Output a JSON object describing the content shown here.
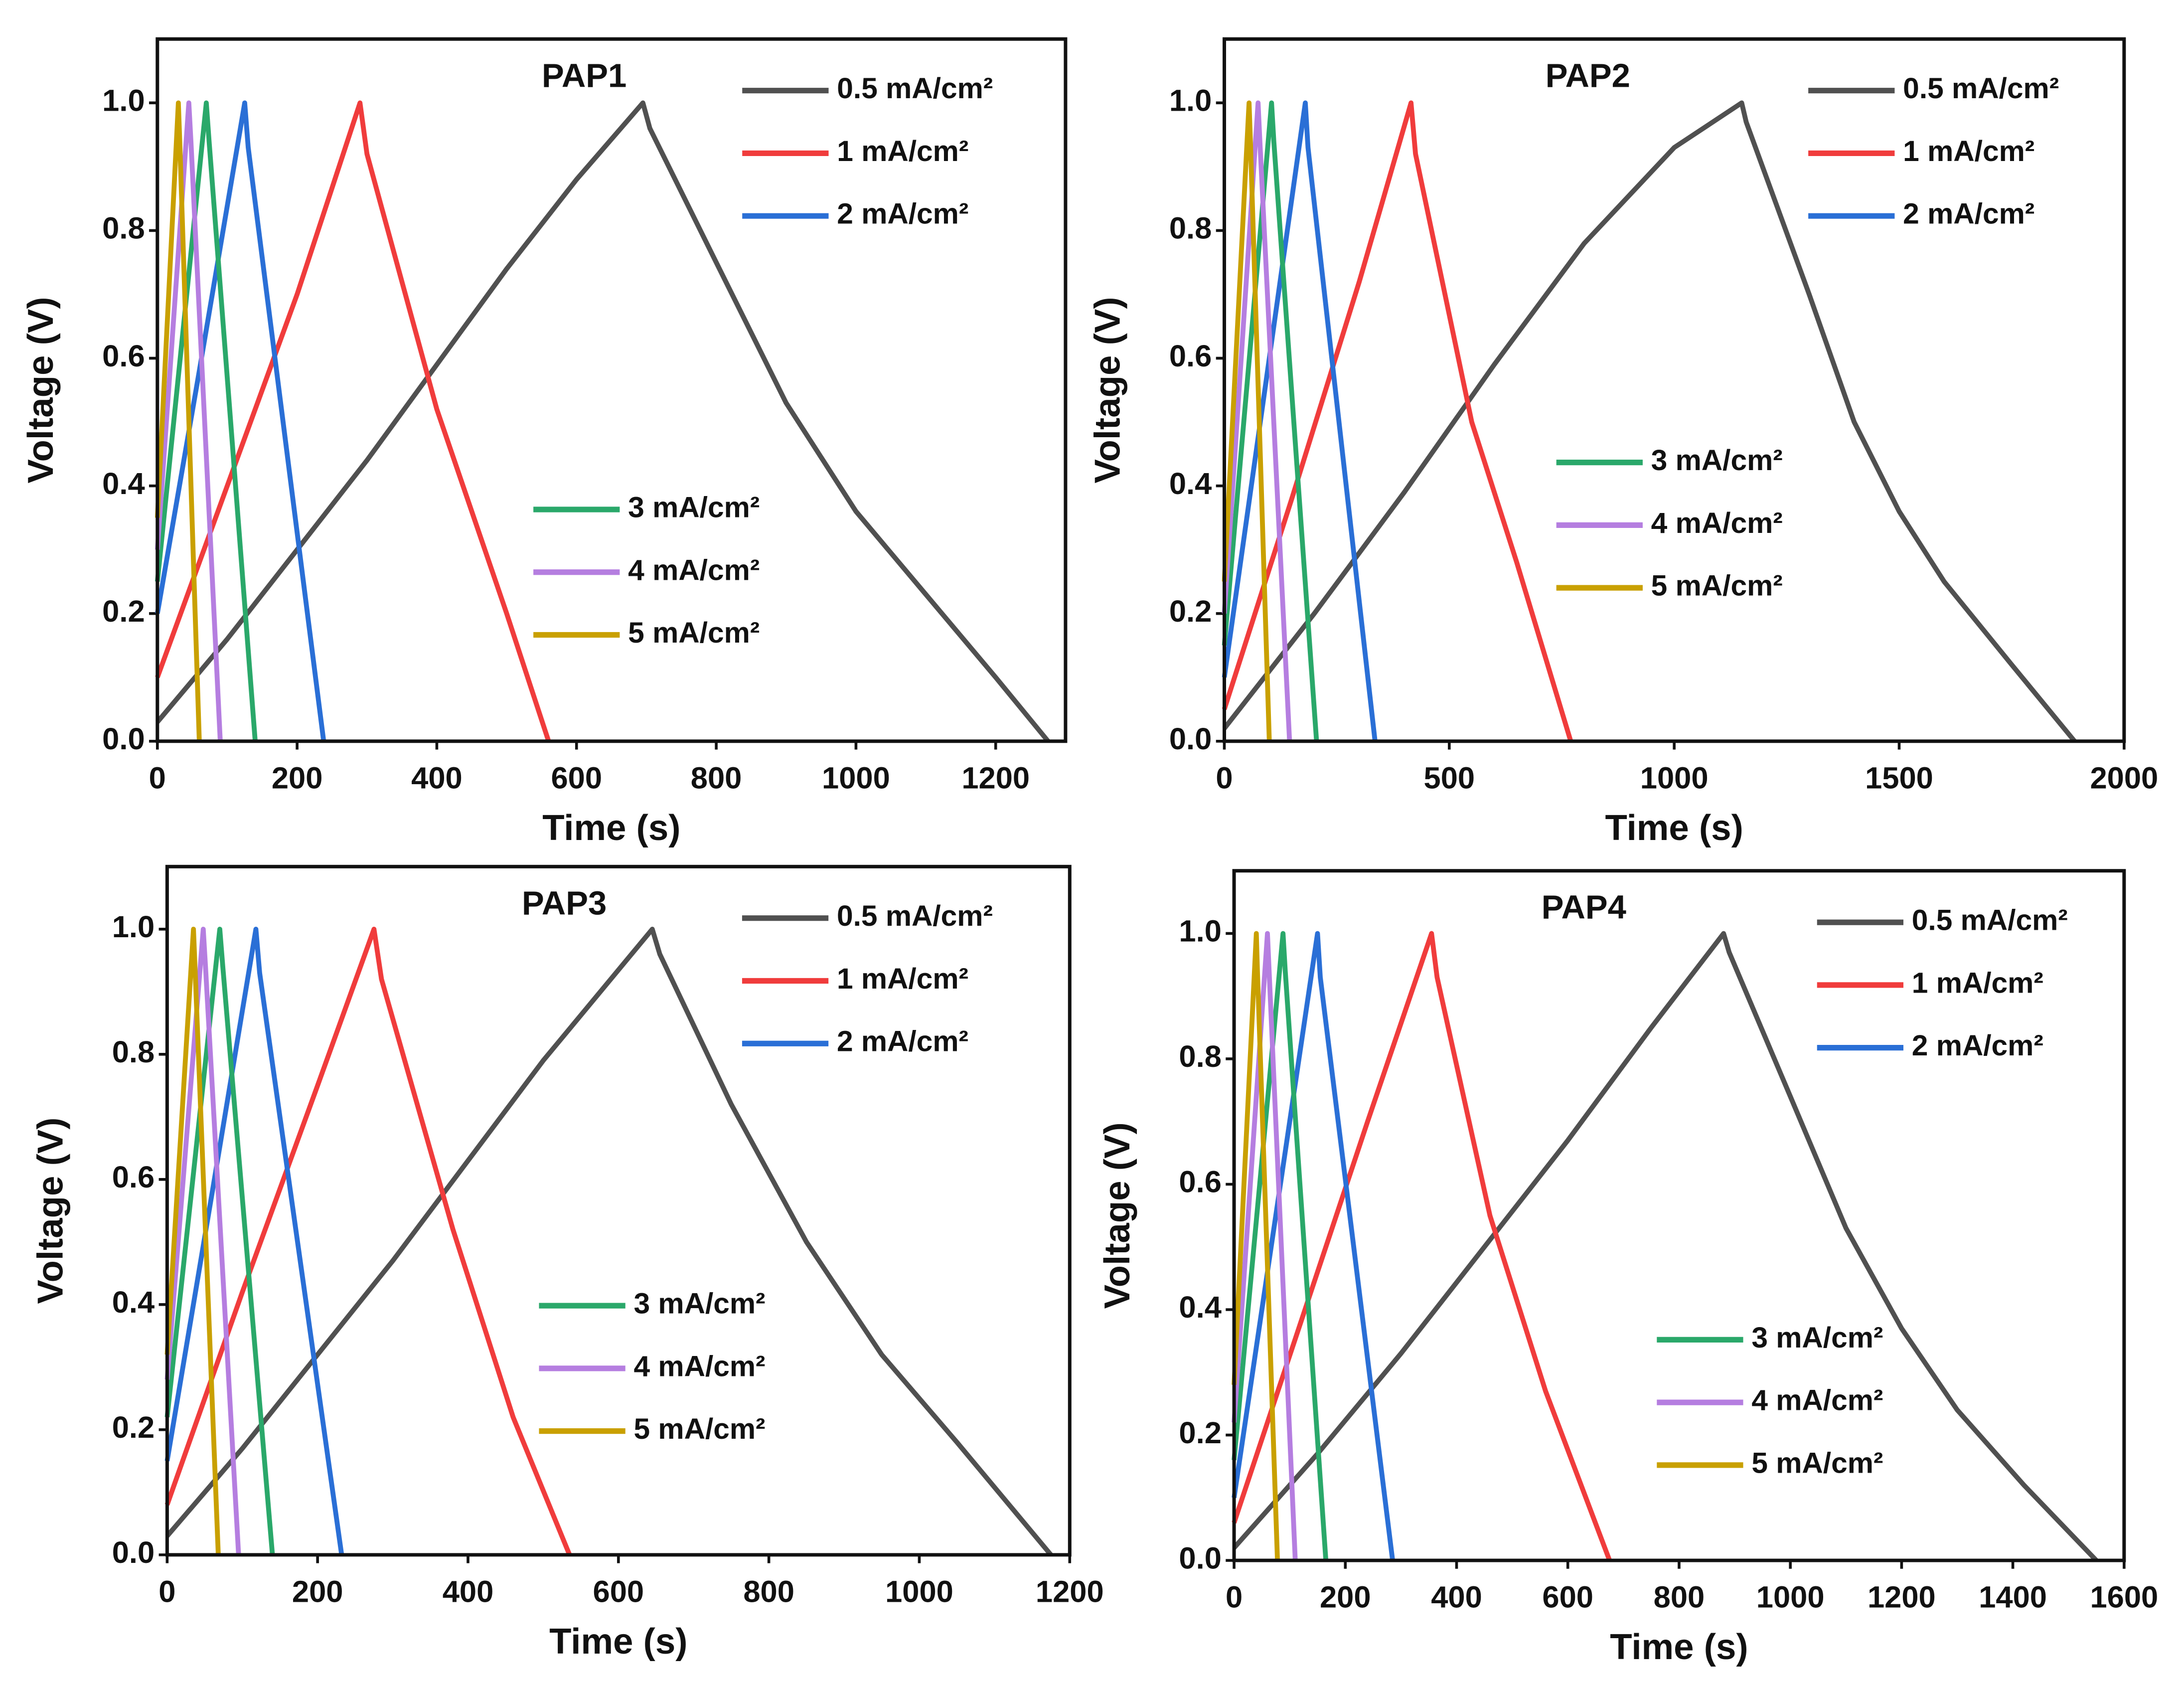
{
  "chart_data": [
    {
      "type": "line",
      "title": "PAP1",
      "xlabel": "Time (s)",
      "ylabel": "Voltage (V)",
      "xlim": [
        0,
        1300
      ],
      "ylim": [
        0,
        1.1
      ],
      "xticks": [
        0,
        200,
        400,
        600,
        800,
        1000,
        1200
      ],
      "yticks": [
        0.0,
        0.2,
        0.4,
        0.6,
        0.8,
        1.0
      ],
      "series": [
        {
          "name": "0.5 mA/cm²",
          "color": "#505050",
          "x": [
            0,
            100,
            200,
            300,
            400,
            500,
            600,
            695,
            705,
            800,
            900,
            1000,
            1100,
            1200,
            1275
          ],
          "values": [
            0.03,
            0.16,
            0.3,
            0.44,
            0.59,
            0.74,
            0.88,
            1.0,
            0.96,
            0.75,
            0.53,
            0.36,
            0.23,
            0.1,
            0.0
          ]
        },
        {
          "name": "1 mA/cm²",
          "color": "#f03c3c",
          "x": [
            0,
            100,
            200,
            290,
            300,
            400,
            500,
            560
          ],
          "values": [
            0.1,
            0.4,
            0.7,
            1.0,
            0.92,
            0.52,
            0.2,
            0.0
          ]
        },
        {
          "name": "2 mA/cm²",
          "color": "#2a6fd6",
          "x": [
            0,
            60,
            125,
            130,
            238
          ],
          "values": [
            0.2,
            0.58,
            1.0,
            0.93,
            0.0
          ]
        },
        {
          "name": "3 mA/cm²",
          "color": "#2aa86a",
          "x": [
            0,
            70,
            74,
            140
          ],
          "values": [
            0.25,
            1.0,
            0.94,
            0.0
          ]
        },
        {
          "name": "4 mA/cm²",
          "color": "#b57ee0",
          "x": [
            0,
            45,
            48,
            90
          ],
          "values": [
            0.3,
            1.0,
            0.94,
            0.0
          ]
        },
        {
          "name": "5 mA/cm²",
          "color": "#c9a000",
          "x": [
            0,
            30,
            32,
            60
          ],
          "values": [
            0.35,
            1.0,
            0.94,
            0.0
          ]
        }
      ]
    },
    {
      "type": "line",
      "title": "PAP2",
      "xlabel": "Time (s)",
      "ylabel": "Voltage (V)",
      "xlim": [
        0,
        2000
      ],
      "ylim": [
        0,
        1.1
      ],
      "xticks": [
        0,
        500,
        1000,
        1500,
        2000
      ],
      "yticks": [
        0.0,
        0.2,
        0.4,
        0.6,
        0.8,
        1.0
      ],
      "series": [
        {
          "name": "0.5 mA/cm²",
          "color": "#505050",
          "x": [
            0,
            200,
            400,
            600,
            800,
            1000,
            1150,
            1160,
            1300,
            1400,
            1500,
            1600,
            1750,
            1890
          ],
          "values": [
            0.02,
            0.2,
            0.39,
            0.59,
            0.78,
            0.93,
            1.0,
            0.97,
            0.7,
            0.5,
            0.36,
            0.25,
            0.12,
            0.0
          ]
        },
        {
          "name": "1 mA/cm²",
          "color": "#f03c3c",
          "x": [
            0,
            150,
            300,
            415,
            425,
            550,
            650,
            770
          ],
          "values": [
            0.05,
            0.38,
            0.72,
            1.0,
            0.92,
            0.5,
            0.28,
            0.0
          ]
        },
        {
          "name": "2 mA/cm²",
          "color": "#2a6fd6",
          "x": [
            0,
            90,
            180,
            186,
            335
          ],
          "values": [
            0.1,
            0.55,
            1.0,
            0.93,
            0.0
          ]
        },
        {
          "name": "3 mA/cm²",
          "color": "#2aa86a",
          "x": [
            0,
            105,
            110,
            205
          ],
          "values": [
            0.15,
            1.0,
            0.94,
            0.0
          ]
        },
        {
          "name": "4 mA/cm²",
          "color": "#b57ee0",
          "x": [
            0,
            75,
            79,
            145
          ],
          "values": [
            0.2,
            1.0,
            0.94,
            0.0
          ]
        },
        {
          "name": "5 mA/cm²",
          "color": "#c9a000",
          "x": [
            0,
            55,
            58,
            100
          ],
          "values": [
            0.25,
            1.0,
            0.94,
            0.0
          ]
        }
      ]
    },
    {
      "type": "line",
      "title": "PAP3",
      "xlabel": "Time (s)",
      "ylabel": "Voltage (V)",
      "xlim": [
        0,
        1200
      ],
      "ylim": [
        0,
        1.1
      ],
      "xticks": [
        0,
        200,
        400,
        600,
        800,
        1000,
        1200
      ],
      "yticks": [
        0.0,
        0.2,
        0.4,
        0.6,
        0.8,
        1.0
      ],
      "series": [
        {
          "name": "0.5 mA/cm²",
          "color": "#505050",
          "x": [
            0,
            100,
            200,
            300,
            400,
            500,
            645,
            655,
            750,
            850,
            950,
            1050,
            1175
          ],
          "values": [
            0.03,
            0.17,
            0.32,
            0.47,
            0.63,
            0.79,
            1.0,
            0.96,
            0.72,
            0.5,
            0.32,
            0.18,
            0.0
          ]
        },
        {
          "name": "1 mA/cm²",
          "color": "#f03c3c",
          "x": [
            0,
            100,
            200,
            275,
            285,
            380,
            460,
            535
          ],
          "values": [
            0.08,
            0.42,
            0.75,
            1.0,
            0.92,
            0.52,
            0.22,
            0.0
          ]
        },
        {
          "name": "2 mA/cm²",
          "color": "#2a6fd6",
          "x": [
            0,
            60,
            118,
            123,
            232
          ],
          "values": [
            0.15,
            0.58,
            1.0,
            0.93,
            0.0
          ]
        },
        {
          "name": "3 mA/cm²",
          "color": "#2aa86a",
          "x": [
            0,
            70,
            74,
            140
          ],
          "values": [
            0.22,
            1.0,
            0.94,
            0.0
          ]
        },
        {
          "name": "4 mA/cm²",
          "color": "#b57ee0",
          "x": [
            0,
            48,
            51,
            95
          ],
          "values": [
            0.28,
            1.0,
            0.94,
            0.0
          ]
        },
        {
          "name": "5 mA/cm²",
          "color": "#c9a000",
          "x": [
            0,
            35,
            37,
            68
          ],
          "values": [
            0.32,
            1.0,
            0.94,
            0.0
          ]
        }
      ]
    },
    {
      "type": "line",
      "title": "PAP4",
      "xlabel": "Time (s)",
      "ylabel": "Voltage (V)",
      "xlim": [
        0,
        1600
      ],
      "ylim": [
        0,
        1.1
      ],
      "xticks": [
        0,
        200,
        400,
        600,
        800,
        1000,
        1200,
        1400,
        1600
      ],
      "yticks": [
        0.0,
        0.2,
        0.4,
        0.6,
        0.8,
        1.0
      ],
      "series": [
        {
          "name": "0.5 mA/cm²",
          "color": "#505050",
          "x": [
            0,
            150,
            300,
            450,
            600,
            750,
            880,
            890,
            1000,
            1100,
            1200,
            1300,
            1420,
            1550
          ],
          "values": [
            0.02,
            0.17,
            0.33,
            0.5,
            0.67,
            0.85,
            1.0,
            0.97,
            0.74,
            0.53,
            0.37,
            0.24,
            0.12,
            0.0
          ]
        },
        {
          "name": "1 mA/cm²",
          "color": "#f03c3c",
          "x": [
            0,
            120,
            240,
            355,
            365,
            460,
            560,
            675
          ],
          "values": [
            0.06,
            0.38,
            0.7,
            1.0,
            0.93,
            0.55,
            0.27,
            0.0
          ]
        },
        {
          "name": "2 mA/cm²",
          "color": "#2a6fd6",
          "x": [
            0,
            75,
            150,
            155,
            285
          ],
          "values": [
            0.1,
            0.55,
            1.0,
            0.93,
            0.0
          ]
        },
        {
          "name": "3 mA/cm²",
          "color": "#2aa86a",
          "x": [
            0,
            88,
            92,
            165
          ],
          "values": [
            0.16,
            1.0,
            0.94,
            0.0
          ]
        },
        {
          "name": "4 mA/cm²",
          "color": "#b57ee0",
          "x": [
            0,
            60,
            63,
            110
          ],
          "values": [
            0.22,
            1.0,
            0.94,
            0.0
          ]
        },
        {
          "name": "5 mA/cm²",
          "color": "#c9a000",
          "x": [
            0,
            40,
            42,
            78
          ],
          "values": [
            0.28,
            1.0,
            0.94,
            0.0
          ]
        }
      ]
    }
  ]
}
